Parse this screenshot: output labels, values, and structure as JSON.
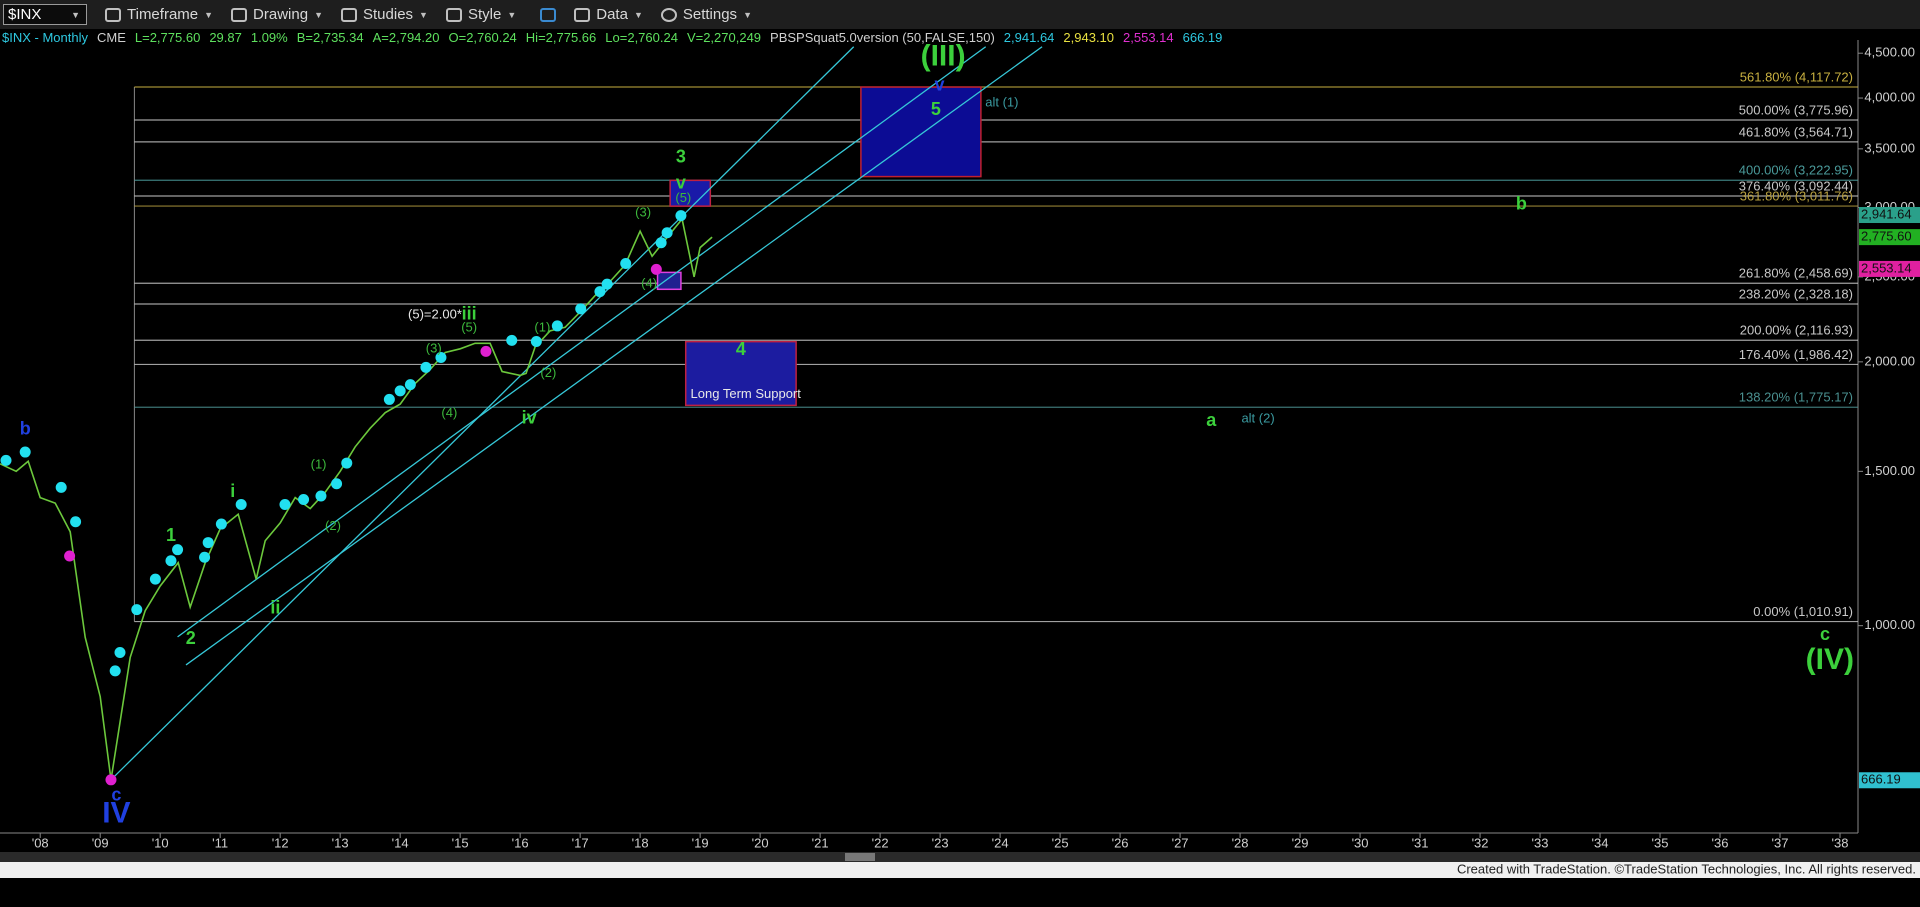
{
  "toolbar": {
    "symbol": "$INX",
    "menus": [
      "Timeframe",
      "Drawing",
      "Studies",
      "Style",
      "Data",
      "Settings"
    ]
  },
  "chart_data": {
    "type": "line",
    "info": [
      {
        "text": "$INX - Monthly",
        "color": "#2ec8e0"
      },
      {
        "text": "CME",
        "color": "#d0d0d0"
      },
      {
        "text": "L=2,775.60",
        "color": "#5ee05e"
      },
      {
        "text": "29.87",
        "color": "#5ee05e"
      },
      {
        "text": "1.09%",
        "color": "#5ee05e"
      },
      {
        "text": "B=2,735.34",
        "color": "#5ee05e"
      },
      {
        "text": "A=2,794.20",
        "color": "#5ee05e"
      },
      {
        "text": "O=2,760.24",
        "color": "#5ee05e"
      },
      {
        "text": "Hi=2,775.66",
        "color": "#5ee05e"
      },
      {
        "text": "Lo=2,760.24",
        "color": "#5ee05e"
      },
      {
        "text": "V=2,270,249",
        "color": "#5ee05e"
      },
      {
        "text": "PBSPSquat5.0version (50,FALSE,150)",
        "color": "#d0d0d0"
      },
      {
        "text": "2,941.64",
        "color": "#2ec8e0"
      },
      {
        "text": "2,943.10",
        "color": "#e8e040"
      },
      {
        "text": "2,553.14",
        "color": "#e030d0"
      },
      {
        "text": "666.19",
        "color": "#2ec8e0"
      }
    ],
    "log_scale": true,
    "grid": false,
    "xlim": [
      2007.33,
      2038.3
    ],
    "ylim": [
      580,
      4580
    ],
    "xticks": [
      {
        "value": 2008,
        "label": "'08"
      },
      {
        "value": 2009,
        "label": "'09"
      },
      {
        "value": 2010,
        "label": "'10"
      },
      {
        "value": 2011,
        "label": "'11"
      },
      {
        "value": 2012,
        "label": "'12"
      },
      {
        "value": 2013,
        "label": "'13"
      },
      {
        "value": 2014,
        "label": "'14"
      },
      {
        "value": 2015,
        "label": "'15"
      },
      {
        "value": 2016,
        "label": "'16"
      },
      {
        "value": 2017,
        "label": "'17"
      },
      {
        "value": 2018,
        "label": "'18"
      },
      {
        "value": 2019,
        "label": "'19"
      },
      {
        "value": 2020,
        "label": "'20"
      },
      {
        "value": 2021,
        "label": "'21"
      },
      {
        "value": 2022,
        "label": "'22"
      },
      {
        "value": 2023,
        "label": "'23"
      },
      {
        "value": 2024,
        "label": "'24"
      },
      {
        "value": 2025,
        "label": "'25"
      },
      {
        "value": 2026,
        "label": "'26"
      },
      {
        "value": 2027,
        "label": "'27"
      },
      {
        "value": 2028,
        "label": "'28"
      },
      {
        "value": 2029,
        "label": "'29"
      },
      {
        "value": 2030,
        "label": "'30"
      },
      {
        "value": 2031,
        "label": "'31"
      },
      {
        "value": 2032,
        "label": "'32"
      },
      {
        "value": 2033,
        "label": "'33"
      },
      {
        "value": 2034,
        "label": "'34"
      },
      {
        "value": 2035,
        "label": "'35"
      },
      {
        "value": 2036,
        "label": "'36"
      },
      {
        "value": 2037,
        "label": "'37"
      },
      {
        "value": 2038,
        "label": "'38"
      }
    ],
    "yticks": [
      {
        "value": 4500,
        "label": "4,500.00"
      },
      {
        "value": 4000,
        "label": "4,000.00"
      },
      {
        "value": 3500,
        "label": "3,500.00"
      },
      {
        "value": 3000,
        "label": "3,000.00"
      },
      {
        "value": 2500,
        "label": "2,500.00"
      },
      {
        "value": 2000,
        "label": "2,000.00"
      },
      {
        "value": 1500,
        "label": "1,500.00"
      },
      {
        "value": 1000,
        "label": "1,000.00"
      }
    ],
    "color": "#6cc83c",
    "x": [
      2007.33,
      2007.6,
      2007.8,
      2008.0,
      2008.25,
      2008.5,
      2008.75,
      2009.0,
      2009.18,
      2009.5,
      2009.75,
      2010.0,
      2010.3,
      2010.5,
      2010.75,
      2011.0,
      2011.3,
      2011.6,
      2011.75,
      2012.0,
      2012.25,
      2012.5,
      2012.75,
      2013.0,
      2013.25,
      2013.5,
      2013.75,
      2014.0,
      2014.25,
      2014.5,
      2014.75,
      2015.0,
      2015.25,
      2015.5,
      2015.7,
      2016.0,
      2016.1,
      2016.25,
      2016.5,
      2016.75,
      2017.0,
      2017.25,
      2017.5,
      2017.75,
      2018.0,
      2018.2,
      2018.5,
      2018.7,
      2018.9,
      2019.0,
      2019.2
    ],
    "values": [
      1530,
      1500,
      1540,
      1400,
      1380,
      1280,
      970,
      830,
      667,
      920,
      1040,
      1110,
      1180,
      1050,
      1180,
      1290,
      1340,
      1130,
      1250,
      1310,
      1400,
      1360,
      1420,
      1500,
      1600,
      1680,
      1750,
      1790,
      1890,
      1960,
      2050,
      2070,
      2100,
      2100,
      1950,
      1930,
      1940,
      2080,
      2170,
      2190,
      2280,
      2380,
      2470,
      2580,
      2820,
      2640,
      2800,
      2910,
      2500,
      2700,
      2775.6
    ],
    "dots": [
      {
        "color": "#22e0f0",
        "x": [
          2007.43,
          2007.75,
          2008.35,
          2008.59,
          2009.25,
          2009.33,
          2009.61,
          2009.92,
          2010.18,
          2010.29,
          2010.74,
          2010.8,
          2011.02,
          2011.35,
          2012.08,
          2012.39,
          2012.68,
          2012.94,
          2013.11,
          2013.82,
          2014.0,
          2014.17,
          2014.43,
          2014.68,
          2015.86,
          2016.27,
          2016.62,
          2017.01,
          2017.33,
          2017.45,
          2017.76,
          2018.35,
          2018.45,
          2018.68
        ],
        "values": [
          1544,
          1578,
          1438,
          1314,
          888,
          932,
          1043,
          1130,
          1186,
          1221,
          1197,
          1244,
          1306,
          1375,
          1375,
          1393,
          1406,
          1452,
          1533,
          1812,
          1853,
          1884,
          1971,
          2023,
          2116,
          2110,
          2198,
          2299,
          2405,
          2453,
          2590,
          2735,
          2808,
          2937
        ]
      },
      {
        "color": "#e020d0",
        "x": [
          2008.49,
          2015.43,
          2018.27,
          2009.18
        ],
        "values": [
          1201,
          2056,
          2550,
          667
        ]
      }
    ],
    "fib_start_x": 2009.57,
    "fib_levels": [
      {
        "label": "561.80% (4,117.72)",
        "value": 4117.72,
        "color": "#c8b040"
      },
      {
        "label": "500.00% (3,775.96)",
        "value": 3775.96,
        "color": "#c8c8c8"
      },
      {
        "label": "461.80% (3,564.71)",
        "value": 3564.71,
        "color": "#c8c8c8"
      },
      {
        "label": "400.00% (3,222.95)",
        "value": 3222.95,
        "color": "#4a9a9a"
      },
      {
        "label": "376.40% (3,092.44)",
        "value": 3092.44,
        "color": "#c8c8c8"
      },
      {
        "label": "361.80% (3,011.76)",
        "value": 3011.76,
        "color": "#b8a040"
      },
      {
        "label": "261.80% (2,458.69)",
        "value": 2458.69,
        "color": "#c8c8c8"
      },
      {
        "label": "238.20% (2,328.18)",
        "value": 2328.18,
        "color": "#c8c8c8"
      },
      {
        "label": "200.00% (2,116.93)",
        "value": 2116.93,
        "color": "#c8c8c8"
      },
      {
        "label": "176.40% (1,986.42)",
        "value": 1986.42,
        "color": "#c8c8c8"
      },
      {
        "label": "138.20% (1,775.17)",
        "value": 1775.17,
        "color": "#4a9090"
      },
      {
        "label": "0.00% (1,010.91)",
        "value": 1010.91,
        "color": "#c8c8c8"
      }
    ],
    "zones": [
      {
        "x": [
          2021.68,
          2023.68
        ],
        "values": [
          4117,
          3254
        ],
        "color": "#0c0c94",
        "border": "#c02030"
      },
      {
        "x": [
          2018.5,
          2019.17
        ],
        "values": [
          3222,
          3011
        ],
        "color": "#1a1aa8",
        "border": "#c02040"
      },
      {
        "x": [
          2018.29,
          2018.68
        ],
        "values": [
          2530,
          2420
        ],
        "color": "#202090",
        "border": "#e040e0"
      },
      {
        "x": [
          2018.76,
          2020.6
        ],
        "values": [
          2109,
          1784
        ],
        "color": "#1c1ca0",
        "border": "#c02040"
      }
    ],
    "channel_color": "#36c8d8",
    "channels": [
      {
        "x": [
          2009.18,
          2021.56
        ],
        "values": [
          667,
          4577
        ]
      },
      {
        "x": [
          2010.29,
          2023.76
        ],
        "values": [
          971,
          4577
        ]
      },
      {
        "x": [
          2010.43,
          2024.7
        ],
        "values": [
          902,
          4577
        ]
      }
    ],
    "annotations": [
      {
        "text": "(III)",
        "x": 2023.05,
        "y": 4446,
        "color": "#3cd03c",
        "size": "large"
      },
      {
        "text": "v",
        "x": 2022.99,
        "y": 4130,
        "color": "#2040e0",
        "size": "medium"
      },
      {
        "text": "5",
        "x": 2022.93,
        "y": 3873,
        "color": "#3cd03c",
        "size": "medium"
      },
      {
        "text": "alt (1)",
        "x": 2024.03,
        "y": 3948,
        "color": "#3a9aa0",
        "size": "small"
      },
      {
        "text": "3",
        "x": 2018.68,
        "y": 3417,
        "color": "#3cd03c",
        "size": "medium"
      },
      {
        "text": "v",
        "x": 2018.68,
        "y": 3193,
        "color": "#3cd03c",
        "size": "medium"
      },
      {
        "text": "(5)",
        "x": 2018.72,
        "y": 3070,
        "color": "#3cb83c",
        "size": "small"
      },
      {
        "text": "(3)",
        "x": 2018.05,
        "y": 2956,
        "color": "#3cb83c",
        "size": "small"
      },
      {
        "text": "(4)",
        "x": 2018.15,
        "y": 2453,
        "color": "#3cb83c",
        "size": "small"
      },
      {
        "text": "b",
        "x": 2032.69,
        "y": 3023,
        "color": "#3cd03c",
        "size": "medium"
      },
      {
        "text": "4",
        "x": 2019.68,
        "y": 2062,
        "color": "#3cd03c",
        "size": "medium"
      },
      {
        "text": "Long Term Support",
        "x": 2019.76,
        "y": 1836,
        "color": "#e8e8e8",
        "size": "small"
      },
      {
        "text": "(5)=2.00*",
        "x": 2014.58,
        "y": 2263,
        "color": "#e8e8e8",
        "size": "small"
      },
      {
        "text": "iii",
        "x": 2015.15,
        "y": 2263,
        "color": "#3cd03c",
        "size": "medium"
      },
      {
        "text": "(5)",
        "x": 2015.15,
        "y": 2185,
        "color": "#3cb83c",
        "size": "small"
      },
      {
        "text": "(3)",
        "x": 2014.56,
        "y": 2068,
        "color": "#3cb83c",
        "size": "small"
      },
      {
        "text": "(1)",
        "x": 2016.37,
        "y": 2185,
        "color": "#3cb83c",
        "size": "small"
      },
      {
        "text": "(2)",
        "x": 2016.47,
        "y": 1940,
        "color": "#3cb83c",
        "size": "small"
      },
      {
        "text": "(4)",
        "x": 2014.82,
        "y": 1745,
        "color": "#3cb83c",
        "size": "small"
      },
      {
        "text": "iv",
        "x": 2016.15,
        "y": 1722,
        "color": "#3cd03c",
        "size": "medium"
      },
      {
        "text": "a",
        "x": 2027.52,
        "y": 1711,
        "color": "#3cd03c",
        "size": "medium"
      },
      {
        "text": "alt (2)",
        "x": 2028.3,
        "y": 1722,
        "color": "#3a9aa0",
        "size": "small"
      },
      {
        "text": "b",
        "x": 2007.75,
        "y": 1673,
        "color": "#2040e0",
        "size": "medium"
      },
      {
        "text": "i",
        "x": 2011.21,
        "y": 1420,
        "color": "#3cd03c",
        "size": "medium"
      },
      {
        "text": "(1)",
        "x": 2012.64,
        "y": 1524,
        "color": "#3cb83c",
        "size": "small"
      },
      {
        "text": "(2)",
        "x": 2012.88,
        "y": 1298,
        "color": "#3cb83c",
        "size": "small"
      },
      {
        "text": "1",
        "x": 2010.18,
        "y": 1265,
        "color": "#3cd03c",
        "size": "medium"
      },
      {
        "text": "ii",
        "x": 2011.92,
        "y": 1046,
        "color": "#3cd03c",
        "size": "medium"
      },
      {
        "text": "2",
        "x": 2010.51,
        "y": 965,
        "color": "#3cd03c",
        "size": "medium"
      },
      {
        "text": "c",
        "x": 2037.75,
        "y": 975,
        "color": "#3cd03c",
        "size": "medium"
      },
      {
        "text": "(IV)",
        "x": 2037.83,
        "y": 911,
        "color": "#3cd03c",
        "size": "large"
      },
      {
        "text": "c",
        "x": 2009.27,
        "y": 640,
        "color": "#2040e0",
        "size": "medium"
      },
      {
        "text": "IV",
        "x": 2009.27,
        "y": 609,
        "color": "#2040e0",
        "size": "large"
      }
    ],
    "price_markers": [
      {
        "value": 2941.64,
        "label": "2,941.64",
        "color": "#2aa08a"
      },
      {
        "value": 2775.6,
        "label": "2,775.60",
        "color": "#22b022"
      },
      {
        "value": 2553.14,
        "label": "2,553.14",
        "color": "#e020a0"
      },
      {
        "value": 666.19,
        "label": "666.19",
        "color": "#30c0d0"
      }
    ]
  },
  "footer": "Created with TradeStation. ©TradeStation Technologies, Inc. All rights reserved."
}
